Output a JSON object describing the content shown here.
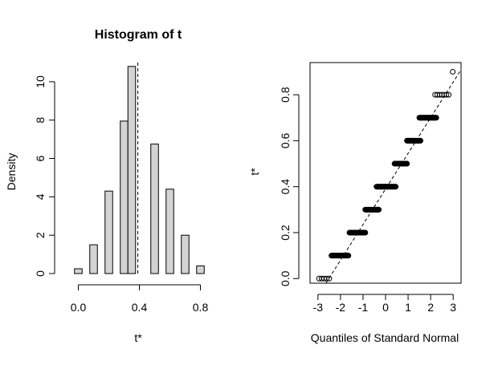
{
  "chart_data": [
    {
      "type": "bar",
      "title": "Histogram of t",
      "xlabel": "t*",
      "ylabel": "Density",
      "xlim": [
        -0.15,
        0.95
      ],
      "ylim": [
        0,
        11
      ],
      "bin_width": 0.05,
      "bars": [
        {
          "x0": -0.025,
          "x1": 0.025,
          "density": 0.25
        },
        {
          "x0": 0.075,
          "x1": 0.125,
          "density": 1.5
        },
        {
          "x0": 0.175,
          "x1": 0.225,
          "density": 4.3
        },
        {
          "x0": 0.275,
          "x1": 0.325,
          "density": 7.95
        },
        {
          "x0": 0.325,
          "x1": 0.375,
          "density": 10.8
        },
        {
          "x0": 0.475,
          "x1": 0.525,
          "density": 6.75
        },
        {
          "x0": 0.575,
          "x1": 0.625,
          "density": 4.4
        },
        {
          "x0": 0.675,
          "x1": 0.725,
          "density": 2.0
        },
        {
          "x0": 0.775,
          "x1": 0.825,
          "density": 0.4
        }
      ],
      "reference_line_x": 0.39,
      "x_ticks": [
        {
          "v": 0.0,
          "label": "0.0"
        },
        {
          "v": 0.4,
          "label": "0.4"
        },
        {
          "v": 0.8,
          "label": "0.8"
        }
      ],
      "y_ticks": [
        {
          "v": 0,
          "label": "0"
        },
        {
          "v": 2,
          "label": "2"
        },
        {
          "v": 4,
          "label": "4"
        },
        {
          "v": 6,
          "label": "6"
        },
        {
          "v": 8,
          "label": "8"
        },
        {
          "v": 10,
          "label": "10"
        }
      ]
    },
    {
      "type": "scatter",
      "title": "",
      "xlabel": "Quantiles of Standard Normal",
      "ylabel": "t*",
      "xlim": [
        -3.35,
        3.35
      ],
      "ylim": [
        -0.02,
        0.94
      ],
      "reference_line": {
        "intercept": 0.39,
        "slope": 0.155
      },
      "point_levels": [
        {
          "y": 0.0,
          "x_from": -2.95,
          "x_to": -2.5,
          "count": 5
        },
        {
          "y": 0.1,
          "x_from": -2.4,
          "x_to": -1.65,
          "count": 32
        },
        {
          "y": 0.2,
          "x_from": -1.6,
          "x_to": -0.9,
          "count": 32
        },
        {
          "y": 0.3,
          "x_from": -0.9,
          "x_to": -0.3,
          "count": 32
        },
        {
          "y": 0.4,
          "x_from": -0.4,
          "x_to": 0.45,
          "count": 36
        },
        {
          "y": 0.5,
          "x_from": 0.4,
          "x_to": 0.95,
          "count": 30
        },
        {
          "y": 0.6,
          "x_from": 0.95,
          "x_to": 1.55,
          "count": 30
        },
        {
          "y": 0.7,
          "x_from": 1.5,
          "x_to": 2.25,
          "count": 32
        },
        {
          "y": 0.8,
          "x_from": 2.2,
          "x_to": 2.8,
          "count": 7
        },
        {
          "y": 0.9,
          "x_from": 2.98,
          "x_to": 2.98,
          "count": 1
        }
      ],
      "x_ticks": [
        {
          "v": -3,
          "label": "-3"
        },
        {
          "v": -2,
          "label": "-2"
        },
        {
          "v": -1,
          "label": "-1"
        },
        {
          "v": 0,
          "label": "0"
        },
        {
          "v": 1,
          "label": "1"
        },
        {
          "v": 2,
          "label": "2"
        },
        {
          "v": 3,
          "label": "3"
        }
      ],
      "y_ticks": [
        {
          "v": 0.0,
          "label": "0.0"
        },
        {
          "v": 0.2,
          "label": "0.2"
        },
        {
          "v": 0.4,
          "label": "0.4"
        },
        {
          "v": 0.6,
          "label": "0.6"
        },
        {
          "v": 0.8,
          "label": "0.8"
        }
      ]
    }
  ]
}
